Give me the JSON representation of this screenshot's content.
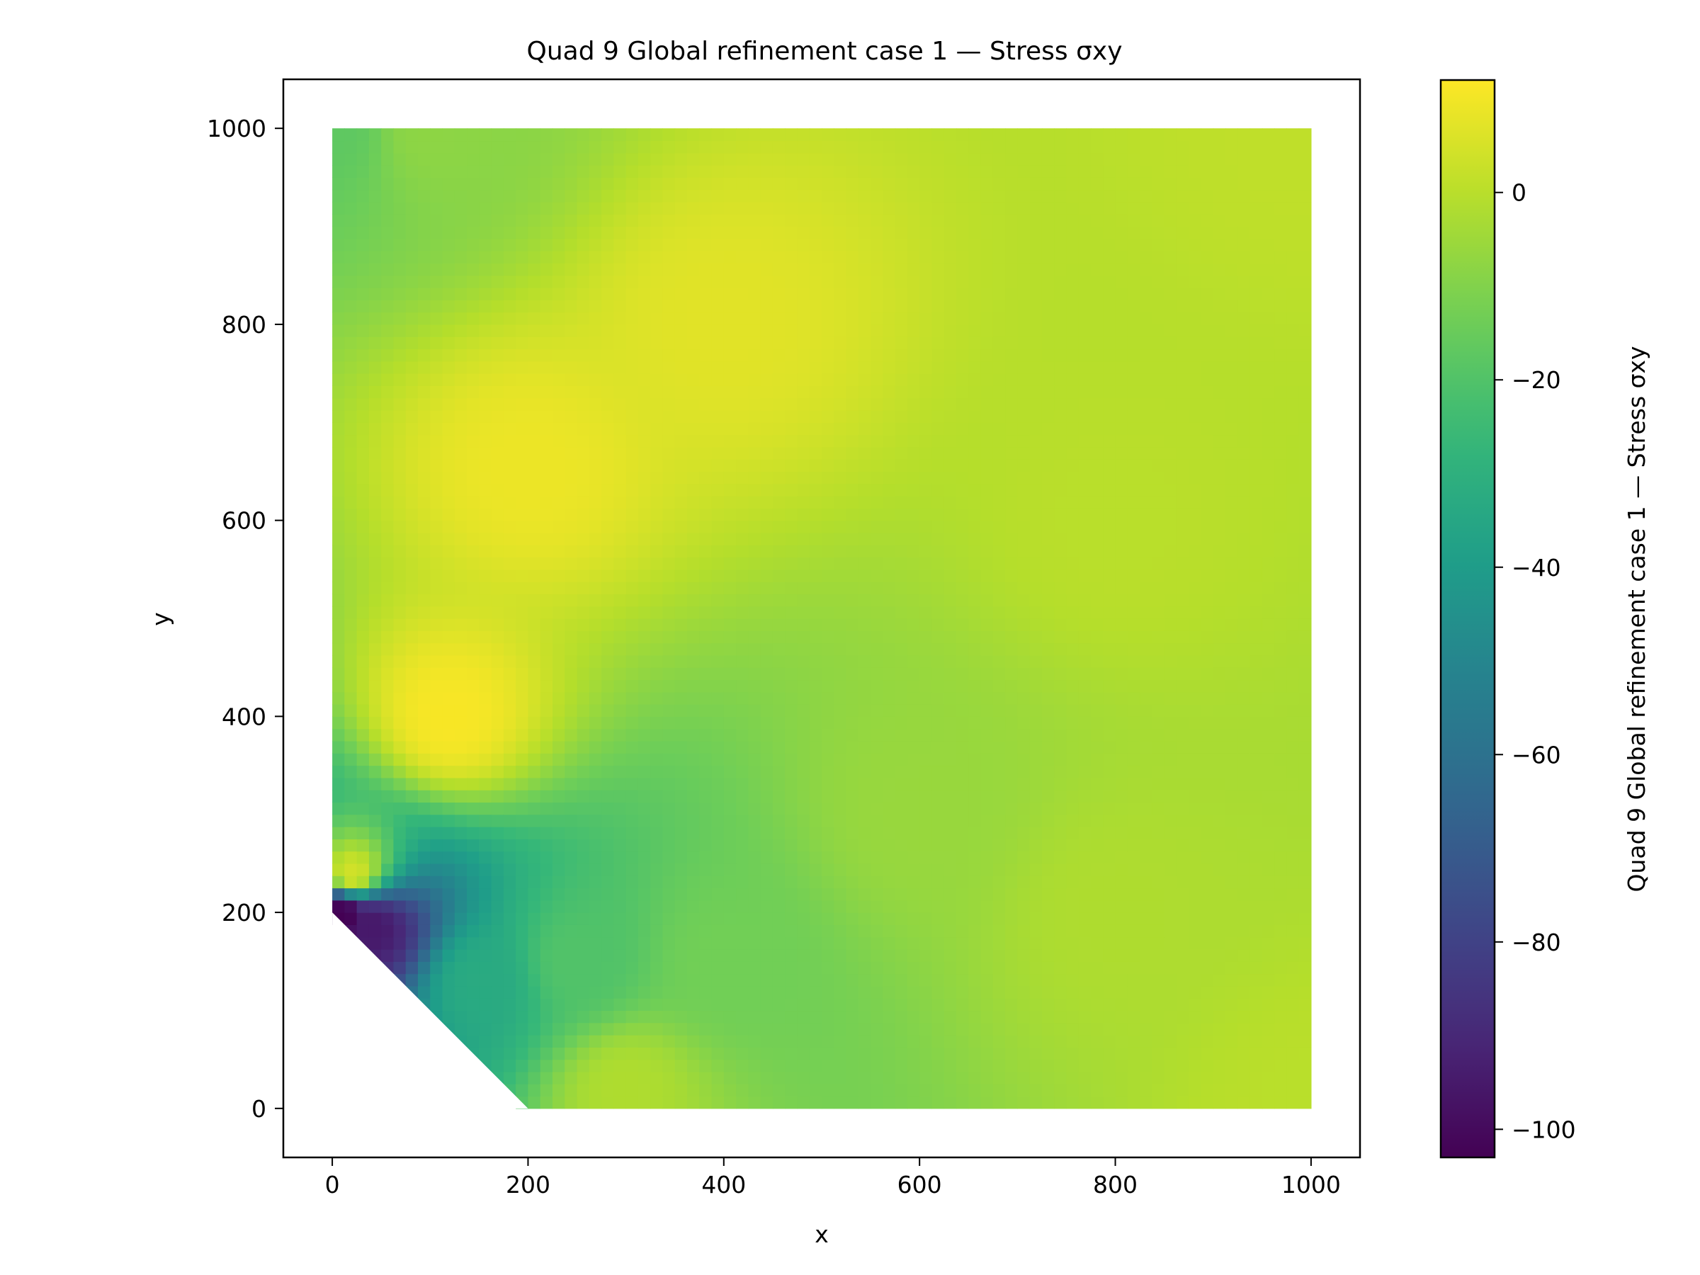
{
  "chart_data": {
    "type": "heatmap",
    "title": "Quad 9 Global refinement case 1 — Stress σxy",
    "xlabel": "x",
    "ylabel": "y",
    "xlim": [
      -50,
      1050
    ],
    "ylim": [
      -50,
      1050
    ],
    "xticks": [
      0,
      200,
      400,
      600,
      800,
      1000
    ],
    "yticks": [
      0,
      200,
      400,
      600,
      800,
      1000
    ],
    "domain_polygon": [
      [
        0,
        200
      ],
      [
        0,
        1000
      ],
      [
        1000,
        1000
      ],
      [
        1000,
        0
      ],
      [
        200,
        0
      ]
    ],
    "colormap": "viridis",
    "colorbar": {
      "label": "Quad 9 Global refinement case 1 — Stress σxy",
      "range": [
        -103,
        12
      ],
      "ticks": [
        0,
        -20,
        -40,
        -60,
        -80,
        -100
      ]
    },
    "field_samples": [
      {
        "x": 0,
        "y": 1000,
        "value": -17
      },
      {
        "x": 100,
        "y": 1000,
        "value": -8
      },
      {
        "x": 400,
        "y": 800,
        "value": 7
      },
      {
        "x": 200,
        "y": 650,
        "value": 9
      },
      {
        "x": 120,
        "y": 400,
        "value": 11
      },
      {
        "x": 20,
        "y": 240,
        "value": 4
      },
      {
        "x": 800,
        "y": 600,
        "value": 0
      },
      {
        "x": 1000,
        "y": 1000,
        "value": 1
      },
      {
        "x": 600,
        "y": 300,
        "value": -6
      },
      {
        "x": 400,
        "y": 150,
        "value": -13
      },
      {
        "x": 250,
        "y": 150,
        "value": -20
      },
      {
        "x": 150,
        "y": 130,
        "value": -33
      },
      {
        "x": 40,
        "y": 185,
        "value": -95
      },
      {
        "x": 10,
        "y": 198,
        "value": -103
      },
      {
        "x": 300,
        "y": 20,
        "value": -2
      },
      {
        "x": 800,
        "y": 200,
        "value": -2
      },
      {
        "x": 1000,
        "y": 0,
        "value": 0
      }
    ]
  },
  "colors": {
    "viridis": [
      "#440154",
      "#482878",
      "#3e4989",
      "#31688e",
      "#26828e",
      "#1f9e89",
      "#35b779",
      "#6ece58",
      "#b5de2b",
      "#fde725"
    ]
  }
}
